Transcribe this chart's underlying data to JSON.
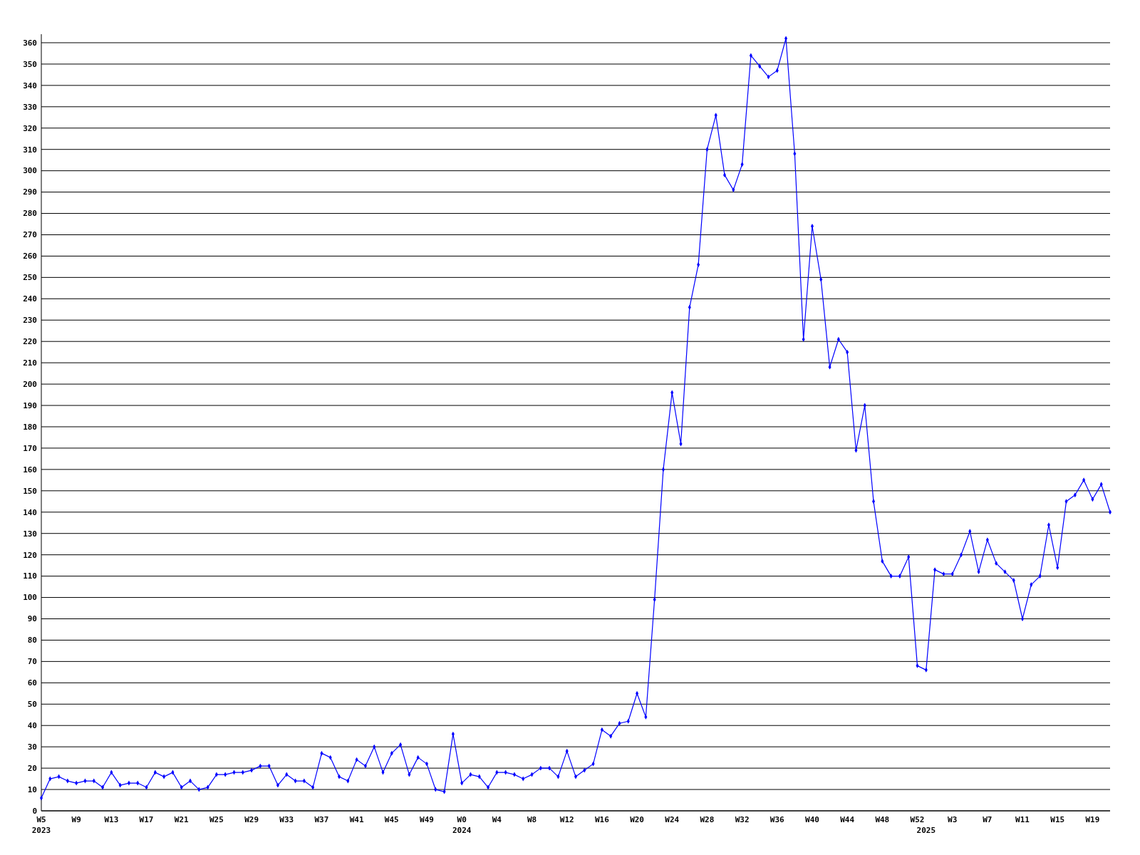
{
  "chart_data": {
    "type": "line",
    "categories": [
      "W5\n2023",
      null,
      null,
      null,
      "W9",
      null,
      null,
      null,
      "W13",
      null,
      null,
      null,
      "W17",
      null,
      null,
      null,
      "W21",
      null,
      null,
      null,
      "W25",
      null,
      null,
      null,
      "W29",
      null,
      null,
      null,
      "W33",
      null,
      null,
      null,
      "W37",
      null,
      null,
      null,
      "W41",
      null,
      null,
      null,
      "W45",
      null,
      null,
      null,
      "W49",
      null,
      null,
      null,
      "W0\n2024",
      null,
      null,
      null,
      "W4",
      null,
      null,
      null,
      "W8",
      null,
      null,
      null,
      "W12",
      null,
      null,
      null,
      "W16",
      null,
      null,
      null,
      "W20",
      null,
      null,
      null,
      "W24",
      null,
      null,
      null,
      "W28",
      null,
      null,
      null,
      "W32",
      null,
      null,
      null,
      "W36",
      null,
      null,
      null,
      "W40",
      null,
      null,
      null,
      "W44",
      null,
      null,
      null,
      "W48",
      null,
      null,
      null,
      "W52",
      "\n2025",
      null,
      null,
      "W3",
      null,
      null,
      null,
      "W7",
      null,
      null,
      null,
      "W11",
      null,
      null,
      null,
      "W15",
      null,
      null,
      null,
      "W19",
      null,
      null
    ],
    "series": [
      {
        "color": "#0000ff",
        "values": [
          6,
          15,
          16,
          14,
          13,
          14,
          14,
          11,
          18,
          12,
          13,
          13,
          11,
          18,
          16,
          18,
          11,
          14,
          10,
          11,
          17,
          17,
          18,
          18,
          19,
          21,
          21,
          12,
          17,
          14,
          14,
          11,
          27,
          25,
          16,
          14,
          24,
          21,
          30,
          18,
          27,
          31,
          17,
          25,
          22,
          10,
          9,
          36,
          13,
          17,
          16,
          11,
          18,
          18,
          17,
          15,
          17,
          20,
          20,
          16,
          28,
          16,
          19,
          22,
          38,
          35,
          41,
          42,
          55,
          44,
          99,
          160,
          196,
          172,
          236,
          256,
          310,
          326,
          298,
          291,
          303,
          354,
          349,
          344,
          347,
          362,
          308,
          221,
          274,
          249,
          208,
          221,
          215,
          169,
          190,
          145,
          117,
          110,
          110,
          119,
          68,
          66,
          113,
          111,
          111,
          120,
          131,
          112,
          127,
          116,
          112,
          108,
          90,
          106,
          110,
          134,
          114,
          145,
          148,
          155,
          146,
          153,
          140
        ]
      }
    ],
    "ylim": [
      0,
      364
    ],
    "yticks": [
      0,
      10,
      20,
      30,
      40,
      50,
      60,
      70,
      80,
      90,
      100,
      110,
      120,
      130,
      140,
      150,
      160,
      170,
      180,
      190,
      200,
      210,
      220,
      230,
      240,
      250,
      260,
      270,
      280,
      290,
      300,
      310,
      320,
      330,
      340,
      350,
      360
    ],
    "grid": "y",
    "marker": "diamond",
    "line_style": "solid"
  }
}
